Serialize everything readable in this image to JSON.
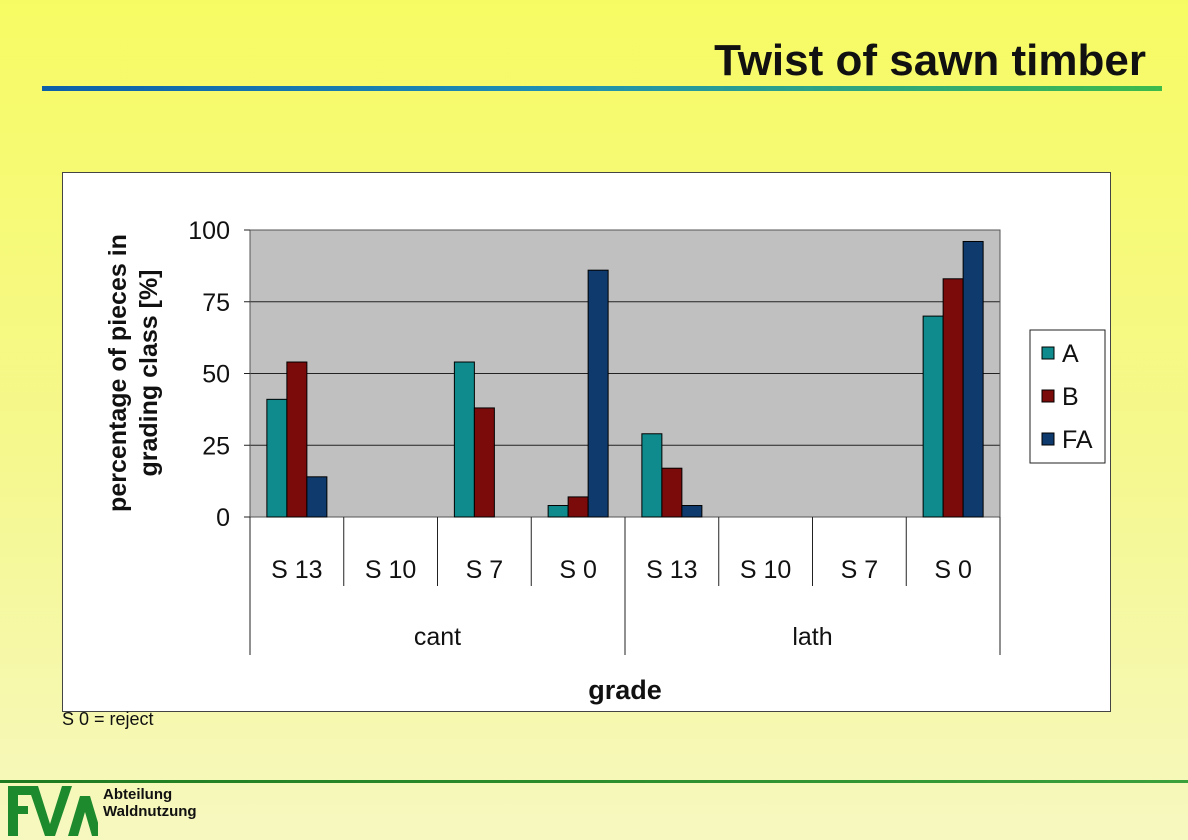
{
  "slide": {
    "title": "Twist of sawn timber",
    "footnote": "S 0 = reject",
    "footer": {
      "logo_text": "FVA",
      "department_line1": "Abteilung",
      "department_line2": "Waldnutzung"
    }
  },
  "chart_data": {
    "type": "bar",
    "title": "",
    "ylabel_line1": "percentage of pieces in",
    "ylabel_line2": "grading class [%]",
    "xlabel": "grade",
    "ylim": [
      0,
      100
    ],
    "yticks": [
      0,
      25,
      50,
      75,
      100
    ],
    "ytick_labels": [
      "0",
      "25",
      "50",
      "75",
      "100"
    ],
    "grid": "horizontal",
    "legend": "right",
    "groups": [
      {
        "label": "cant",
        "categories": [
          "S 13",
          "S 10",
          "S 7",
          "S 0"
        ]
      },
      {
        "label": "lath",
        "categories": [
          "S 13",
          "S 10",
          "S 7",
          "S 0"
        ]
      }
    ],
    "categories": [
      "S 13",
      "S 10",
      "S 7",
      "S 0",
      "S 13",
      "S 10",
      "S 7",
      "S 0"
    ],
    "series": [
      {
        "name": "A",
        "color": "#0f8b8d",
        "values": [
          41,
          0,
          54,
          4,
          29,
          0,
          0,
          70
        ]
      },
      {
        "name": "B",
        "color": "#7b0a0a",
        "values": [
          54,
          0,
          38,
          7,
          17,
          0,
          0,
          83
        ]
      },
      {
        "name": "FA",
        "color": "#0e3a6e",
        "values": [
          14,
          0,
          0,
          86,
          4,
          0,
          0,
          96
        ]
      }
    ],
    "plot_background": "#c0c0c0"
  }
}
